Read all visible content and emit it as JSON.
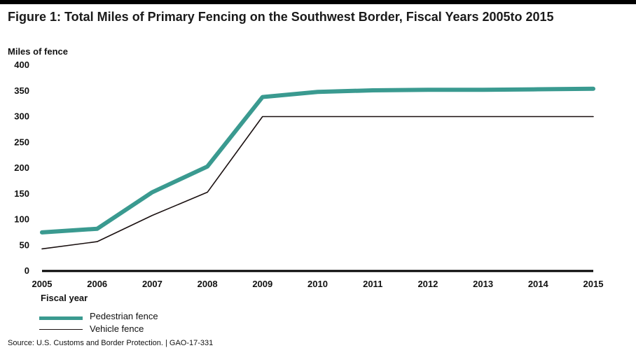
{
  "figure": {
    "title": "Figure 1: Total Miles of Primary Fencing on the Southwest Border, Fiscal Years 2005to 2015",
    "source": "Source: U.S. Customs and Border Protection.  |  GAO-17-331"
  },
  "chart_data": {
    "type": "line",
    "title": "Figure 1: Total Miles of Primary Fencing on the Southwest Border, Fiscal Years 2005to 2015",
    "xlabel": "Fiscal year",
    "ylabel": "Miles of fence",
    "x": [
      "2005",
      "2006",
      "2007",
      "2008",
      "2009",
      "2010",
      "2011",
      "2012",
      "2013",
      "2014",
      "2015"
    ],
    "ylim": [
      0,
      400
    ],
    "yticks": [
      "0",
      "50",
      "100",
      "150",
      "200",
      "250",
      "300",
      "350",
      "400"
    ],
    "grid": false,
    "legend_position": "bottom-left",
    "series": [
      {
        "name": "Pedestrian fence",
        "color": "#3a9a90",
        "values": [
          75,
          82,
          153,
          203,
          338,
          348,
          351,
          352,
          352,
          353,
          354
        ]
      },
      {
        "name": "Vehicle fence",
        "color": "#1a1010",
        "values": [
          43,
          57,
          108,
          153,
          300,
          300,
          300,
          300,
          300,
          300,
          300
        ]
      }
    ]
  }
}
